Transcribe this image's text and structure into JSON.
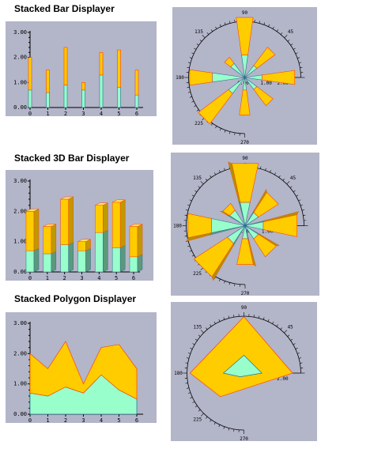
{
  "chart_data": [
    {
      "type": "bar",
      "title": "Stacked Bar Displayer",
      "stacked": true,
      "categories": [
        "0",
        "1",
        "2",
        "3",
        "4",
        "5",
        "6"
      ],
      "ylim": [
        0,
        3
      ],
      "yticks": [
        "0.00",
        "1.00",
        "2.00",
        "3.00"
      ],
      "series": [
        {
          "values": [
            0.7,
            0.6,
            0.9,
            0.7,
            1.3,
            0.8,
            0.5
          ]
        },
        {
          "values": [
            1.3,
            0.9,
            1.5,
            0.3,
            0.9,
            1.5,
            1.0
          ]
        }
      ],
      "colors": {
        "bottom": "#98ffcc",
        "top": "#ffcc00",
        "edge_top": "#ff4400",
        "edge_bottom": "#2a6f8f",
        "background": "#b3b5c9"
      }
    },
    {
      "type": "bar",
      "title": "Stacked 3D Bar Displayer",
      "stacked": true,
      "three_d": true,
      "categories": [
        "0",
        "1",
        "2",
        "3",
        "4",
        "5",
        "6"
      ],
      "ylim": [
        0,
        3
      ],
      "yticks": [
        "0.00",
        "1.00",
        "2.00",
        "3.00"
      ],
      "series": [
        {
          "values": [
            0.7,
            0.6,
            0.9,
            0.7,
            1.3,
            0.8,
            0.5
          ]
        },
        {
          "values": [
            1.3,
            0.9,
            1.5,
            0.3,
            0.9,
            1.5,
            1.0
          ]
        }
      ]
    },
    {
      "type": "area",
      "title": "Stacked Polygon Displayer",
      "stacked": true,
      "x": [
        0,
        1,
        2,
        3,
        4,
        5,
        6
      ],
      "xticks": [
        "0",
        "1",
        "2",
        "3",
        "4",
        "5",
        "6"
      ],
      "ylim": [
        0,
        3
      ],
      "yticks": [
        "0.00",
        "1.00",
        "2.00",
        "3.00"
      ],
      "series": [
        {
          "values": [
            0.7,
            0.6,
            0.9,
            0.7,
            1.3,
            0.8,
            0.5
          ]
        },
        {
          "values": [
            1.3,
            0.9,
            1.5,
            0.3,
            0.9,
            1.5,
            1.0
          ]
        }
      ]
    },
    {
      "type": "polar-bar",
      "stacked": true,
      "angle_labels": [
        "90",
        "45",
        "135",
        "180",
        "225",
        "270"
      ],
      "radial_labels": [
        "0.00",
        "1.00",
        "2.00"
      ],
      "angles_deg": [
        0,
        45,
        90,
        135,
        180,
        225,
        270,
        315
      ],
      "series": [
        {
          "values": [
            0.7,
            0.6,
            0.9,
            0.7,
            1.3,
            0.8,
            0.5,
            0.6
          ]
        },
        {
          "values": [
            1.3,
            0.9,
            1.5,
            0.3,
            0.9,
            1.5,
            1.0,
            0.8
          ]
        }
      ]
    },
    {
      "type": "polar-bar",
      "stacked": true,
      "three_d": true,
      "angle_labels": [
        "90",
        "45",
        "135",
        "180",
        "225",
        "270"
      ],
      "radial_labels": [
        "0.00",
        "1.00",
        "2.00"
      ],
      "angles_deg": [
        0,
        45,
        90,
        135,
        180,
        225,
        270,
        315
      ],
      "series": [
        {
          "values": [
            0.7,
            0.6,
            0.9,
            0.7,
            1.3,
            0.8,
            0.5,
            0.6
          ]
        },
        {
          "values": [
            1.3,
            0.9,
            1.5,
            0.3,
            0.9,
            1.5,
            1.0,
            0.8
          ]
        }
      ]
    },
    {
      "type": "polar-area",
      "stacked": true,
      "angle_labels": [
        "90",
        "45",
        "135",
        "180",
        "225",
        "270"
      ],
      "radial_labels": [
        "0.00",
        "1.00",
        "2.00"
      ],
      "angles_deg": [
        0,
        90,
        180,
        225
      ],
      "series": [
        {
          "values": [
            0.7,
            0.7,
            0.8,
            0.2
          ]
        },
        {
          "values": [
            1.2,
            1.5,
            1.3,
            1.1
          ]
        }
      ]
    }
  ]
}
